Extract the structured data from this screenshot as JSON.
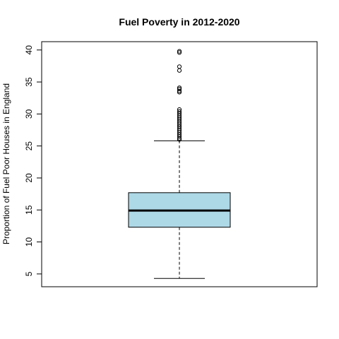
{
  "chart_data": {
    "type": "boxplot",
    "title": "Fuel Poverty in 2012-2020",
    "xlabel": "",
    "ylabel": "Proportion of Fuel Poor Houses in England",
    "ylim": [
      3,
      41.3
    ],
    "yticks": [
      5,
      10,
      15,
      20,
      25,
      30,
      35,
      40
    ],
    "box_color": "#add8e6",
    "grid": false,
    "stats": {
      "min_whisker": 4.3,
      "q1": 12.3,
      "median": 14.9,
      "q3": 17.7,
      "max_whisker": 25.8
    },
    "outliers": [
      39.8,
      39.6,
      37.4,
      36.8,
      34.1,
      33.9,
      33.6,
      33.4,
      30.7,
      30.4,
      30.1,
      29.8,
      29.5,
      29.2,
      28.9,
      28.6,
      28.3,
      28.0,
      27.7,
      27.4,
      27.1,
      26.8,
      26.5,
      26.2,
      26.0
    ]
  }
}
